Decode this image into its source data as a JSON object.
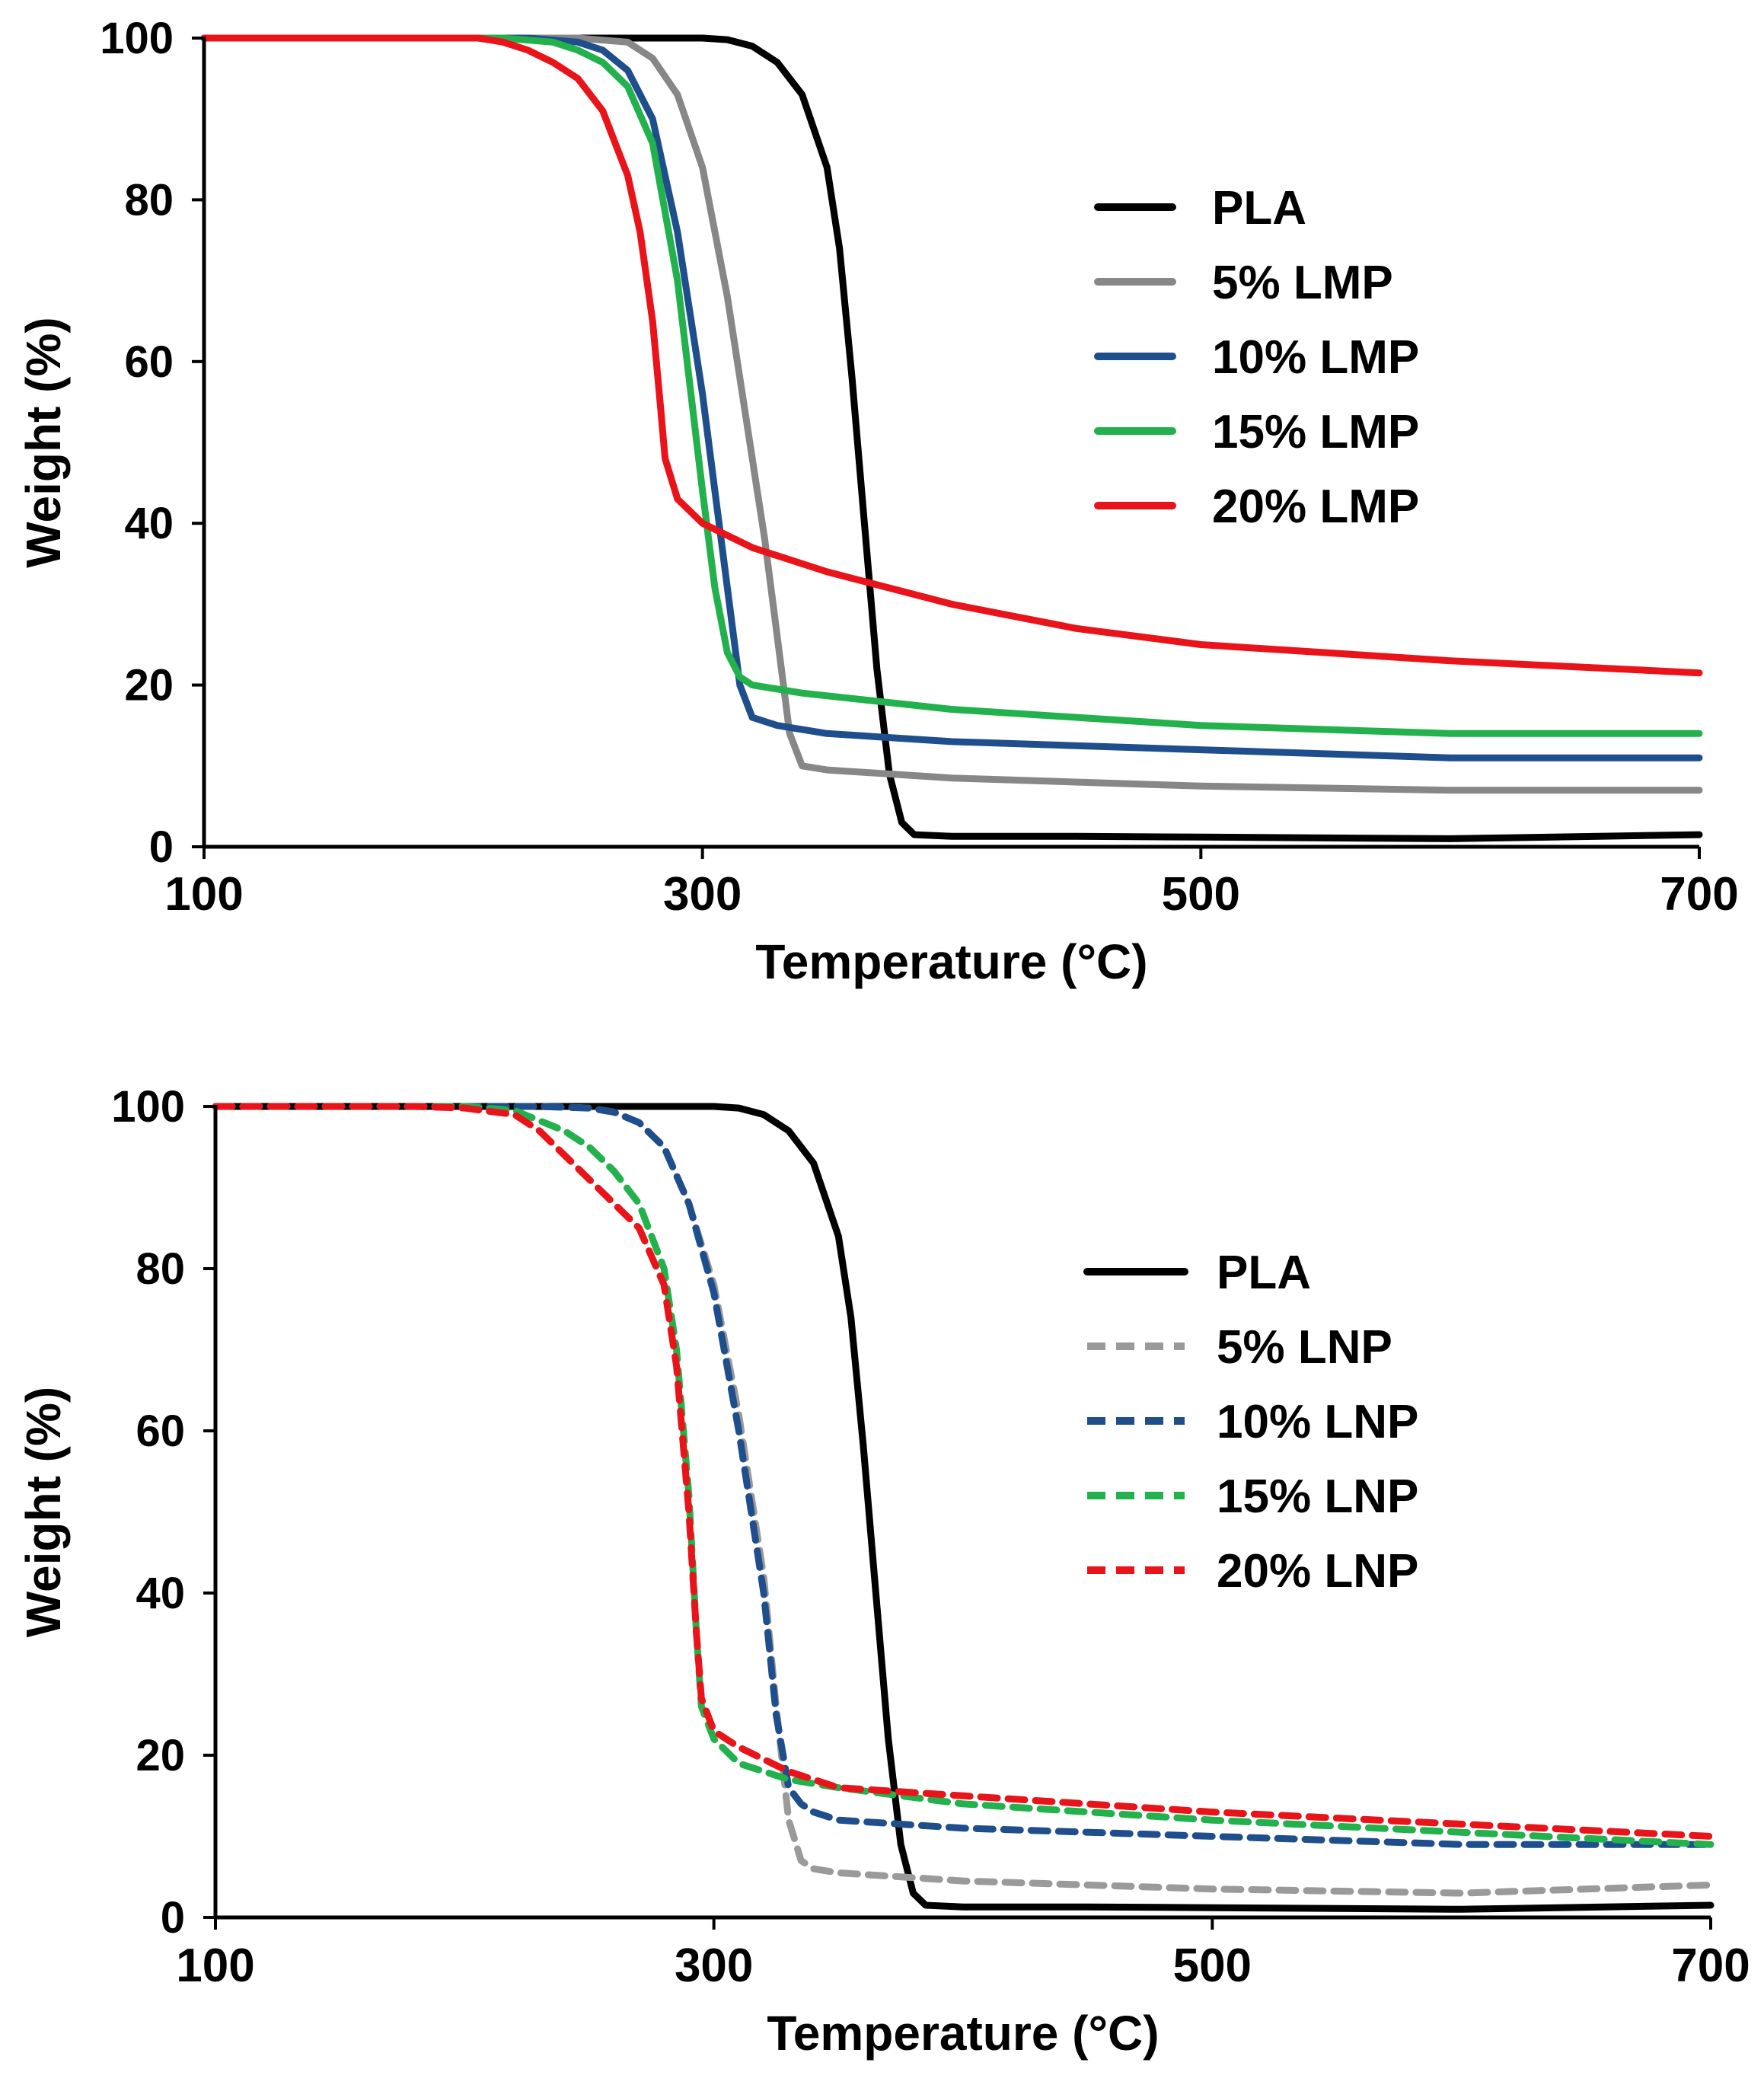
{
  "chart_data": [
    {
      "type": "line",
      "xlabel": "Temperature (°C)",
      "ylabel": "Weight (%)",
      "xlim": [
        100,
        700
      ],
      "ylim": [
        0,
        100
      ],
      "xticks": [
        100,
        300,
        500,
        700
      ],
      "yticks": [
        0,
        20,
        40,
        60,
        80,
        100
      ],
      "legend_position": "right-center",
      "series": [
        {
          "name": "PLA",
          "color": "#000000",
          "dash": "solid",
          "x": [
            100,
            300,
            310,
            320,
            330,
            340,
            350,
            355,
            360,
            365,
            370,
            375,
            380,
            385,
            400,
            450,
            500,
            600,
            700
          ],
          "y": [
            100,
            100,
            99.8,
            99,
            97,
            93,
            84,
            74,
            58,
            40,
            22,
            9,
            3,
            1.5,
            1.3,
            1.3,
            1.2,
            1.0,
            1.5
          ]
        },
        {
          "name": "5% LMP",
          "color": "#878787",
          "dash": "solid",
          "x": [
            100,
            250,
            270,
            280,
            290,
            300,
            310,
            320,
            325,
            330,
            335,
            340,
            350,
            400,
            500,
            600,
            700
          ],
          "y": [
            100,
            100,
            99.5,
            97.5,
            93,
            84,
            68,
            48,
            38,
            26,
            14,
            10,
            9.5,
            8.5,
            7.5,
            7,
            7
          ]
        },
        {
          "name": "10% LMP",
          "color": "#1f4e8c",
          "dash": "solid",
          "x": [
            100,
            230,
            250,
            260,
            270,
            280,
            290,
            300,
            305,
            310,
            315,
            320,
            330,
            350,
            400,
            500,
            600,
            700
          ],
          "y": [
            100,
            100,
            99.5,
            98.5,
            96,
            90,
            76,
            56,
            44,
            32,
            20,
            16,
            15,
            14,
            13,
            12,
            11,
            11
          ]
        },
        {
          "name": "15% LMP",
          "color": "#22b14c",
          "dash": "solid",
          "x": [
            100,
            220,
            240,
            250,
            260,
            270,
            280,
            290,
            295,
            300,
            305,
            310,
            315,
            320,
            340,
            400,
            500,
            600,
            700
          ],
          "y": [
            100,
            100,
            99.5,
            98.5,
            97,
            94,
            87,
            70,
            57,
            44,
            32,
            24,
            21,
            20,
            19,
            17,
            15,
            14,
            14
          ]
        },
        {
          "name": "20% LMP",
          "color": "#e8141a",
          "dash": "solid",
          "x": [
            100,
            210,
            220,
            230,
            240,
            250,
            260,
            270,
            275,
            280,
            283,
            285,
            290,
            300,
            320,
            350,
            400,
            450,
            500,
            600,
            700
          ],
          "y": [
            100,
            100,
            99.5,
            98.5,
            97,
            95,
            91,
            83,
            76,
            65,
            55,
            48,
            43,
            40,
            37,
            34,
            30,
            27,
            25,
            23,
            21.5
          ]
        }
      ]
    },
    {
      "type": "line",
      "xlabel": "Temperature (°C)",
      "ylabel": "Weight (%)",
      "xlim": [
        100,
        700
      ],
      "ylim": [
        0,
        100
      ],
      "xticks": [
        100,
        300,
        500,
        700
      ],
      "yticks": [
        0,
        20,
        40,
        60,
        80,
        100
      ],
      "legend_position": "right-center",
      "series": [
        {
          "name": "PLA",
          "color": "#000000",
          "dash": "solid",
          "x": [
            100,
            300,
            310,
            320,
            330,
            340,
            350,
            355,
            360,
            365,
            370,
            375,
            380,
            385,
            400,
            450,
            500,
            600,
            700
          ],
          "y": [
            100,
            100,
            99.8,
            99,
            97,
            93,
            84,
            74,
            58,
            40,
            22,
            9,
            3,
            1.5,
            1.3,
            1.3,
            1.2,
            1.0,
            1.5
          ]
        },
        {
          "name": "5% LNP",
          "color": "#9a9a9a",
          "dash": "dashed",
          "x": [
            100,
            230,
            250,
            260,
            270,
            280,
            290,
            300,
            310,
            320,
            325,
            330,
            335,
            340,
            350,
            400,
            500,
            600,
            700
          ],
          "y": [
            100,
            100,
            99.8,
            99.3,
            98,
            95,
            88,
            78,
            62,
            42,
            26,
            12,
            7,
            6,
            5.5,
            4.5,
            3.5,
            3,
            4
          ]
        },
        {
          "name": "10% LNP",
          "color": "#1f4e8c",
          "dash": "dashed",
          "x": [
            100,
            230,
            250,
            260,
            270,
            280,
            290,
            300,
            310,
            320,
            325,
            330,
            335,
            340,
            350,
            400,
            500,
            600,
            700
          ],
          "y": [
            100,
            100,
            99.8,
            99.3,
            98,
            95,
            88,
            77,
            60,
            40,
            25,
            16,
            14,
            13,
            12,
            11,
            10,
            9,
            9
          ]
        },
        {
          "name": "15% LNP",
          "color": "#22b14c",
          "dash": "dashed",
          "x": [
            100,
            200,
            220,
            240,
            250,
            260,
            270,
            280,
            285,
            290,
            293,
            295,
            300,
            310,
            330,
            350,
            400,
            500,
            600,
            700
          ],
          "y": [
            100,
            100,
            99.5,
            97,
            95,
            92,
            88,
            80,
            70,
            52,
            35,
            26,
            22,
            19,
            17,
            16,
            14,
            12,
            10.5,
            9
          ]
        },
        {
          "name": "20% LNP",
          "color": "#e8141a",
          "dash": "dashed",
          "x": [
            100,
            180,
            200,
            220,
            230,
            240,
            250,
            260,
            270,
            280,
            285,
            290,
            293,
            295,
            300,
            310,
            330,
            350,
            400,
            500,
            600,
            700
          ],
          "y": [
            100,
            100,
            99.8,
            99,
            97,
            94,
            91,
            88,
            85,
            78,
            68,
            50,
            35,
            27,
            23,
            21,
            18,
            16,
            15,
            13,
            11.5,
            10
          ]
        }
      ]
    }
  ]
}
